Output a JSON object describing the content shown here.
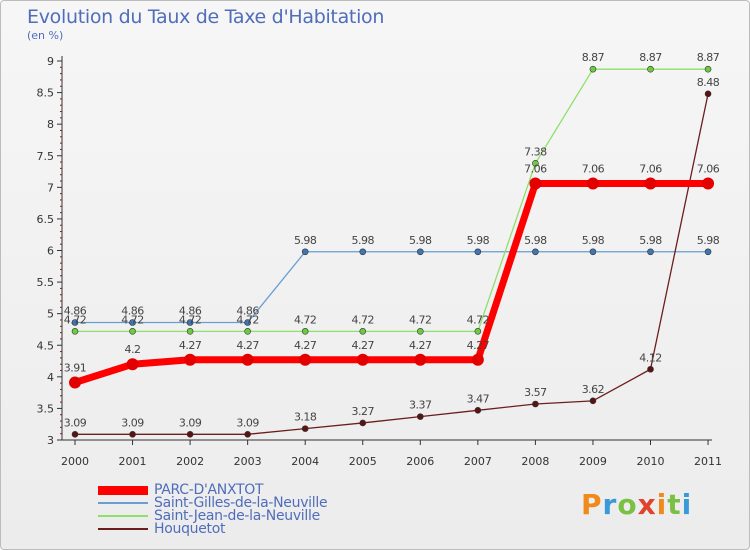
{
  "header": {
    "title": "Evolution du Taux de Taxe d'Habitation",
    "unit": "(en %)"
  },
  "brand": {
    "name": "Proxiti"
  },
  "colors": {
    "PARC-D'ANXTOT": "#ff0000",
    "Saint-Gilles-de-la-Neuville": "#6a9ed2",
    "Saint-Jean-de-la-Neuville": "#8fe06a",
    "Houquetot": "#6b1e1e"
  },
  "chart_data": {
    "type": "line",
    "title": "Evolution du Taux de Taxe d'Habitation",
    "ylabel": "(en %)",
    "xlabel": "",
    "ylim": [
      3,
      9
    ],
    "yticks": [
      "3",
      "3.5",
      "4",
      "4.5",
      "5",
      "5.5",
      "6",
      "6.5",
      "7",
      "7.5",
      "8",
      "8.5",
      "9"
    ],
    "x": [
      "2000",
      "2001",
      "2002",
      "2003",
      "2004",
      "2005",
      "2006",
      "2007",
      "2008",
      "2009",
      "2010",
      "2011"
    ],
    "grid": false,
    "legend": "bottom-left",
    "series": [
      {
        "name": "PARC-D'ANXTOT",
        "values": [
          3.91,
          4.2,
          4.27,
          4.27,
          4.27,
          4.27,
          4.27,
          4.27,
          7.06,
          7.06,
          7.06,
          7.06
        ],
        "labels": [
          "3.91",
          "4.2",
          "4.27",
          "4.27",
          "4.27",
          "4.27",
          "4.27",
          "4.27",
          "7.06",
          "7.06",
          "7.06",
          "7.06"
        ]
      },
      {
        "name": "Saint-Gilles-de-la-Neuville",
        "values": [
          4.86,
          4.86,
          4.86,
          4.86,
          5.98,
          5.98,
          5.98,
          5.98,
          5.98,
          5.98,
          5.98,
          5.98
        ],
        "labels": [
          "4.86",
          "4.86",
          "4.86",
          "4.86",
          "5.98",
          "5.98",
          "5.98",
          "5.98",
          "5.98",
          "5.98",
          "5.98",
          "5.98"
        ]
      },
      {
        "name": "Saint-Jean-de-la-Neuville",
        "values": [
          4.72,
          4.72,
          4.72,
          4.72,
          4.72,
          4.72,
          4.72,
          4.72,
          7.38,
          8.87,
          8.87,
          8.87
        ],
        "labels": [
          "4.72",
          "4.72",
          "4.72",
          "4.72",
          "4.72",
          "4.72",
          "4.72",
          "4.72",
          "7.38",
          "8.87",
          "8.87",
          "8.87"
        ]
      },
      {
        "name": "Houquetot",
        "values": [
          3.09,
          3.09,
          3.09,
          3.09,
          3.18,
          3.27,
          3.37,
          3.47,
          3.57,
          3.62,
          4.12,
          8.48
        ],
        "labels": [
          "3.09",
          "3.09",
          "3.09",
          "3.09",
          "3.18",
          "3.27",
          "3.37",
          "3.47",
          "3.57",
          "3.62",
          "4.12",
          "8.48"
        ]
      }
    ]
  }
}
